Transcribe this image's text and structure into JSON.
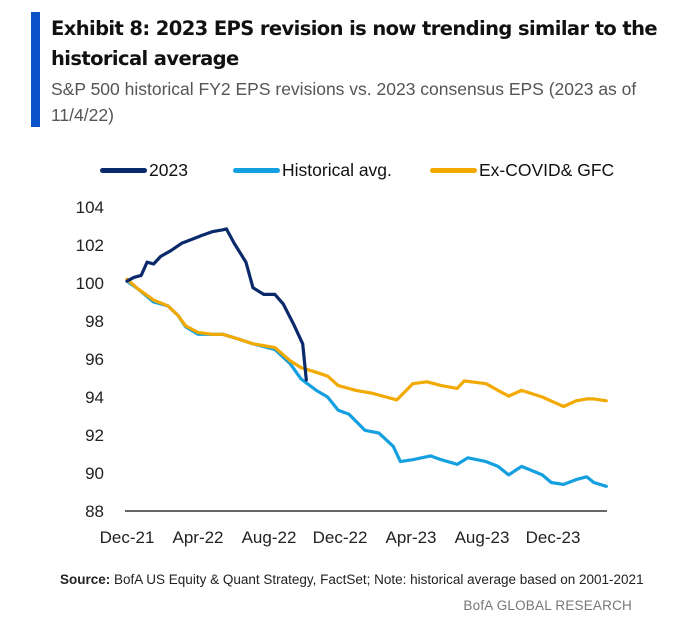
{
  "title": "Exhibit 8: 2023 EPS revision is now trending similar to the historical average",
  "subtitle": "S&P 500 historical FY2 EPS revisions vs. 2023 consensus EPS (2023 as of 11/4/22)",
  "source_label": "Source:",
  "source_text": " BofA US Equity & Quant Strategy, FactSet; Note: historical average based on 2001-2021",
  "brand": "BofA GLOBAL RESEARCH",
  "colors": {
    "accent_bar": "#0a52c7"
  },
  "chart_data": {
    "type": "line",
    "title": "",
    "xlabel": "",
    "ylabel": "",
    "ylim": [
      88,
      104
    ],
    "yticks": [
      "104",
      "102",
      "100",
      "98",
      "96",
      "94",
      "92",
      "90",
      "88"
    ],
    "xticks": [
      {
        "label": "Dec-21",
        "date": "2021-12-01"
      },
      {
        "label": "Apr-22",
        "date": "2022-04-01"
      },
      {
        "label": "Aug-22",
        "date": "2022-08-01"
      },
      {
        "label": "Dec-22",
        "date": "2022-12-01"
      },
      {
        "label": "Apr-23",
        "date": "2023-04-01"
      },
      {
        "label": "Aug-23",
        "date": "2023-08-01"
      },
      {
        "label": "Dec-23",
        "date": "2023-12-01"
      }
    ],
    "xlim": [
      "2021-12-01",
      "2024-03-01"
    ],
    "grid": false,
    "legend_position": "top",
    "series": [
      {
        "name": "2023",
        "color": "#0b2a6b",
        "x": [
          "2021-12-01",
          "2021-12-13",
          "2021-12-25",
          "2022-01-05",
          "2022-01-16",
          "2022-01-28",
          "2022-02-15",
          "2022-03-04",
          "2022-03-25",
          "2022-04-07",
          "2022-04-25",
          "2022-05-13",
          "2022-05-19",
          "2022-06-02",
          "2022-06-22",
          "2022-07-04",
          "2022-07-22",
          "2022-08-11",
          "2022-08-25",
          "2022-09-13",
          "2022-09-28",
          "2022-10-04"
        ],
        "y": [
          100.1,
          100.3,
          100.4,
          101.1,
          101.0,
          101.4,
          101.7,
          102.1,
          102.35,
          102.5,
          102.7,
          102.8,
          102.85,
          102.1,
          101.1,
          99.75,
          99.4,
          99.4,
          98.9,
          97.8,
          96.8,
          94.9
        ]
      },
      {
        "name": "Historical avg.",
        "color": "#14a0e0",
        "x": [
          "2021-12-01",
          "2021-12-19",
          "2022-01-16",
          "2022-02-10",
          "2022-02-27",
          "2022-03-10",
          "2022-04-01",
          "2022-04-25",
          "2022-05-13",
          "2022-06-10",
          "2022-07-04",
          "2022-08-11",
          "2022-09-07",
          "2022-09-25",
          "2022-10-21",
          "2022-11-10",
          "2022-11-28",
          "2022-12-16",
          "2023-01-13",
          "2023-02-07",
          "2023-03-01",
          "2023-03-13",
          "2023-04-04",
          "2023-05-04",
          "2023-05-22",
          "2023-06-19",
          "2023-07-07",
          "2023-08-08",
          "2023-08-28",
          "2023-09-16",
          "2023-10-08",
          "2023-11-13",
          "2023-11-28",
          "2023-12-19",
          "2024-01-10",
          "2024-01-28",
          "2024-02-10",
          "2024-03-01"
        ],
        "y": [
          100.1,
          99.7,
          99.0,
          98.8,
          98.3,
          97.7,
          97.3,
          97.3,
          97.3,
          97.05,
          96.8,
          96.5,
          95.75,
          94.95,
          94.35,
          94.0,
          93.3,
          93.1,
          92.25,
          92.1,
          91.4,
          90.6,
          90.7,
          90.9,
          90.7,
          90.45,
          90.8,
          90.6,
          90.35,
          89.9,
          90.35,
          89.9,
          89.5,
          89.4,
          89.65,
          89.8,
          89.5,
          89.3
        ]
      },
      {
        "name": "Ex-COVID& GFC",
        "color": "#f2a900",
        "x": [
          "2021-12-01",
          "2021-12-19",
          "2022-01-16",
          "2022-02-10",
          "2022-02-27",
          "2022-03-10",
          "2022-04-01",
          "2022-04-25",
          "2022-05-13",
          "2022-06-10",
          "2022-07-04",
          "2022-08-11",
          "2022-09-07",
          "2022-09-25",
          "2022-10-21",
          "2022-11-10",
          "2022-11-28",
          "2022-12-28",
          "2023-01-25",
          "2023-02-19",
          "2023-03-07",
          "2023-04-04",
          "2023-04-28",
          "2023-05-22",
          "2023-06-19",
          "2023-07-01",
          "2023-08-08",
          "2023-08-28",
          "2023-09-16",
          "2023-10-08",
          "2023-11-13",
          "2023-12-01",
          "2023-12-19",
          "2024-01-10",
          "2024-01-28",
          "2024-02-10",
          "2024-03-01"
        ],
        "y": [
          100.2,
          99.7,
          99.1,
          98.8,
          98.3,
          97.75,
          97.4,
          97.3,
          97.3,
          97.05,
          96.8,
          96.6,
          95.9,
          95.55,
          95.3,
          95.1,
          94.6,
          94.35,
          94.2,
          94.0,
          93.85,
          94.7,
          94.8,
          94.6,
          94.45,
          94.85,
          94.7,
          94.35,
          94.05,
          94.35,
          94.0,
          93.75,
          93.5,
          93.8,
          93.9,
          93.9,
          93.8
        ]
      }
    ]
  }
}
